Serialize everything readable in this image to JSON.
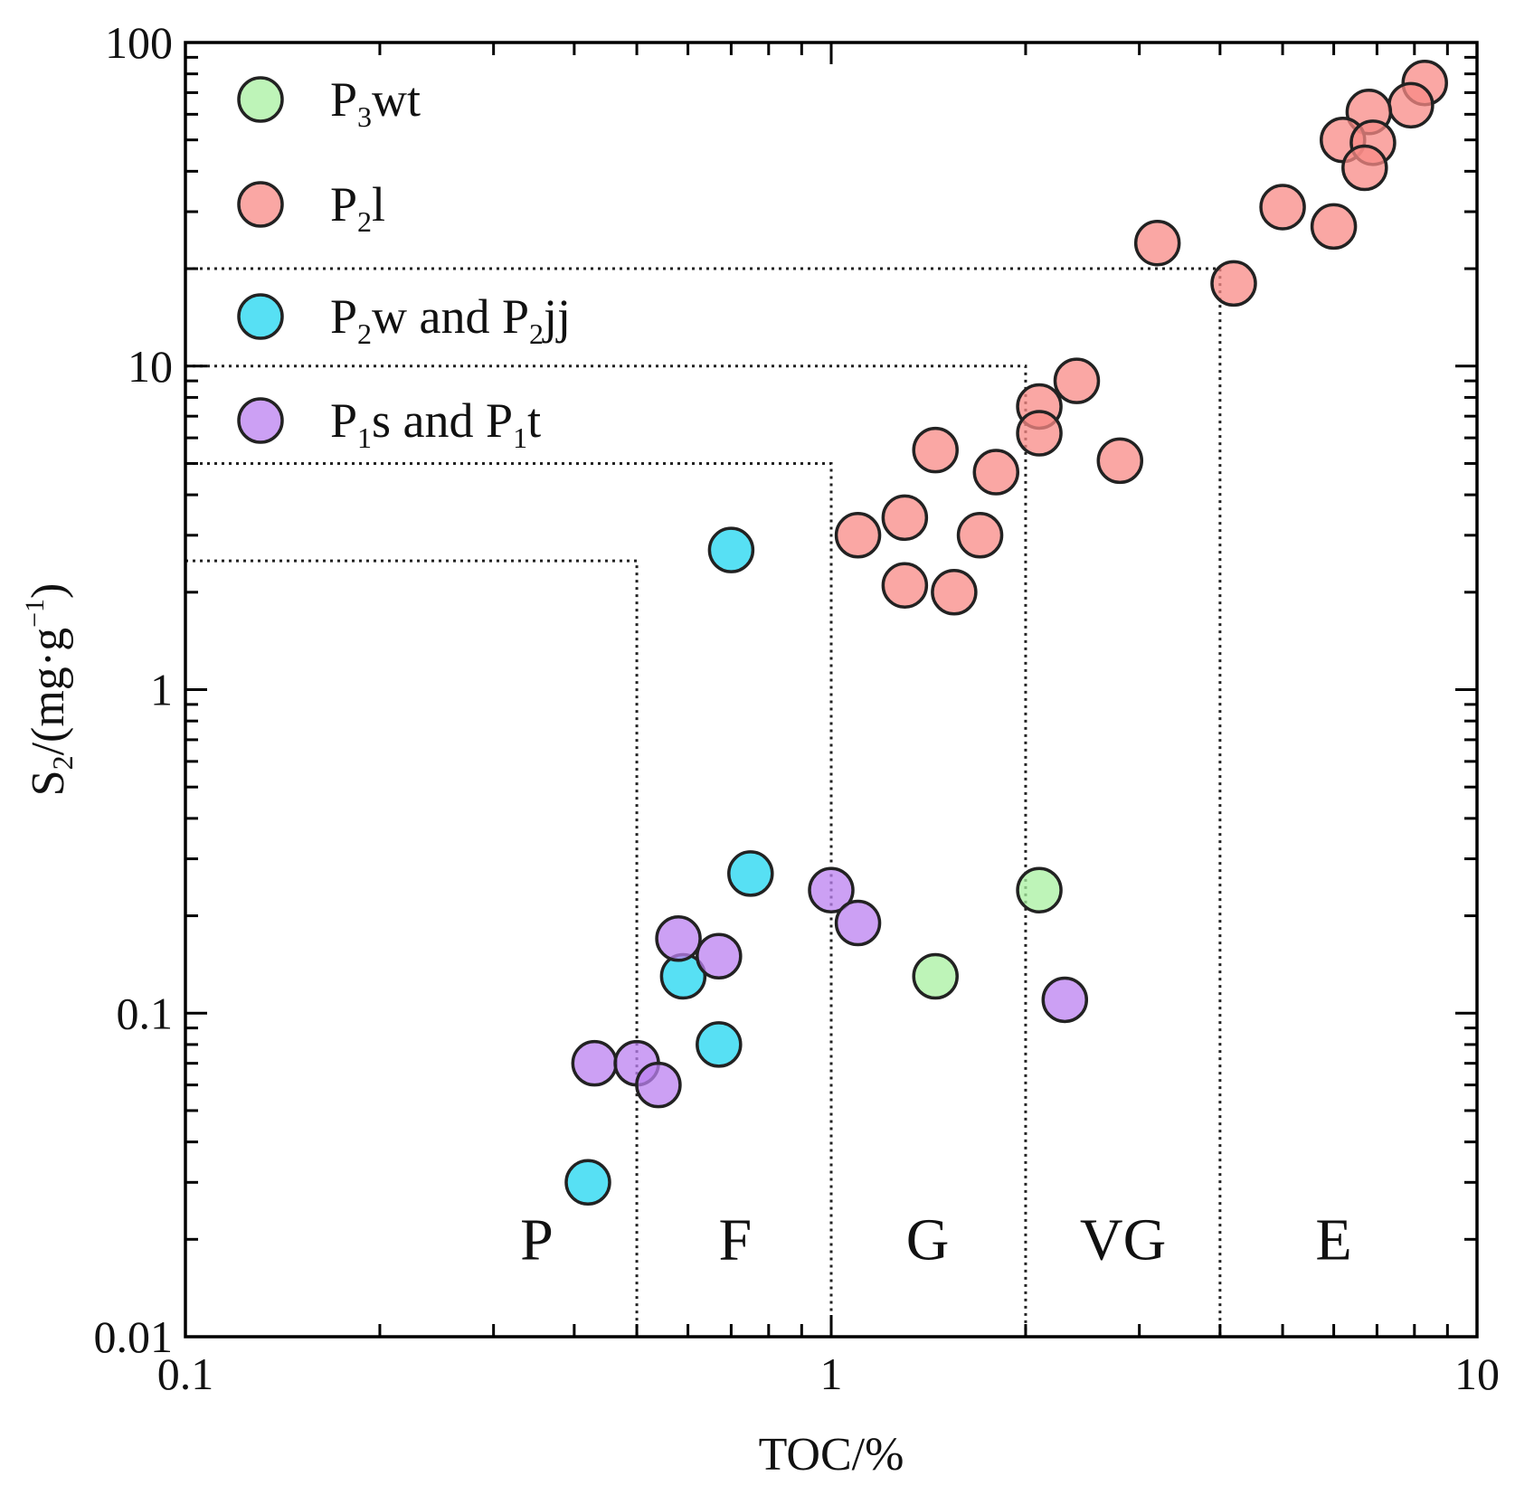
{
  "chart_data": {
    "type": "scatter",
    "x_scale": "log",
    "y_scale": "log",
    "xlim": [
      0.1,
      10
    ],
    "ylim": [
      0.01,
      100
    ],
    "grid": false,
    "legend_placement": "top-left",
    "xlabel": {
      "main": "TOC/%"
    },
    "ylabel": {
      "main": "S",
      "sub": "2",
      "rest": "/(mg·g",
      "sup": "−1",
      "close": ")"
    },
    "x_ticks": [
      {
        "value": 0.1,
        "label": "0.1"
      },
      {
        "value": 1,
        "label": "1"
      },
      {
        "value": 10,
        "label": "10"
      }
    ],
    "y_ticks": [
      {
        "value": 0.01,
        "label": "0.01"
      },
      {
        "value": 0.1,
        "label": "0.1"
      },
      {
        "value": 1,
        "label": "1"
      },
      {
        "value": 10,
        "label": "10"
      },
      {
        "value": 100,
        "label": "100"
      }
    ],
    "boundaries": [
      {
        "toc": 0.5,
        "s2": 2.5
      },
      {
        "toc": 1,
        "s2": 5
      },
      {
        "toc": 2,
        "s2": 10
      },
      {
        "toc": 4,
        "s2": 20
      }
    ],
    "zones": [
      {
        "label": "P",
        "toc": 0.35
      },
      {
        "label": "F",
        "toc": 0.71
      },
      {
        "label": "G",
        "toc": 1.41
      },
      {
        "label": "VG",
        "toc": 2.83
      },
      {
        "label": "E",
        "toc": 6.0
      }
    ],
    "zone_label_s2": 0.02,
    "series": [
      {
        "name": {
          "base": "P",
          "sub": "3",
          "rest": "wt"
        },
        "color": "#a8f0a0",
        "points": [
          {
            "x": 2.1,
            "y": 0.24
          },
          {
            "x": 1.45,
            "y": 0.13
          }
        ]
      },
      {
        "name": {
          "base": "P",
          "sub": "2",
          "rest": "l"
        },
        "color": "#f88a86",
        "points": [
          {
            "x": 8.3,
            "y": 75
          },
          {
            "x": 7.9,
            "y": 64
          },
          {
            "x": 6.8,
            "y": 61
          },
          {
            "x": 6.2,
            "y": 50
          },
          {
            "x": 6.9,
            "y": 49
          },
          {
            "x": 6.7,
            "y": 41
          },
          {
            "x": 5.0,
            "y": 31
          },
          {
            "x": 6.0,
            "y": 27
          },
          {
            "x": 3.2,
            "y": 24
          },
          {
            "x": 4.2,
            "y": 18
          },
          {
            "x": 2.4,
            "y": 9
          },
          {
            "x": 2.1,
            "y": 7.5
          },
          {
            "x": 2.1,
            "y": 6.2
          },
          {
            "x": 1.45,
            "y": 5.5
          },
          {
            "x": 2.8,
            "y": 5.1
          },
          {
            "x": 1.8,
            "y": 4.7
          },
          {
            "x": 1.3,
            "y": 3.4
          },
          {
            "x": 1.1,
            "y": 3.0
          },
          {
            "x": 1.7,
            "y": 3.0
          },
          {
            "x": 1.3,
            "y": 2.1
          },
          {
            "x": 1.55,
            "y": 2.0
          }
        ]
      },
      {
        "name": {
          "base": "P",
          "sub": "2",
          "rest": "w and P",
          "sub2": "2",
          "rest2": "jj"
        },
        "color": "#1fd5f0",
        "points": [
          {
            "x": 0.7,
            "y": 2.7
          },
          {
            "x": 0.75,
            "y": 0.27
          },
          {
            "x": 0.59,
            "y": 0.13
          },
          {
            "x": 0.67,
            "y": 0.08
          },
          {
            "x": 0.42,
            "y": 0.03
          }
        ]
      },
      {
        "name": {
          "base": "P",
          "sub": "1",
          "rest": "s and P",
          "sub2": "1",
          "rest2": "t"
        },
        "color": "#bb80f0",
        "points": [
          {
            "x": 1.0,
            "y": 0.24
          },
          {
            "x": 1.1,
            "y": 0.19
          },
          {
            "x": 0.58,
            "y": 0.17
          },
          {
            "x": 0.67,
            "y": 0.15
          },
          {
            "x": 2.3,
            "y": 0.11
          },
          {
            "x": 0.43,
            "y": 0.07
          },
          {
            "x": 0.5,
            "y": 0.07
          },
          {
            "x": 0.54,
            "y": 0.06
          }
        ]
      }
    ]
  }
}
